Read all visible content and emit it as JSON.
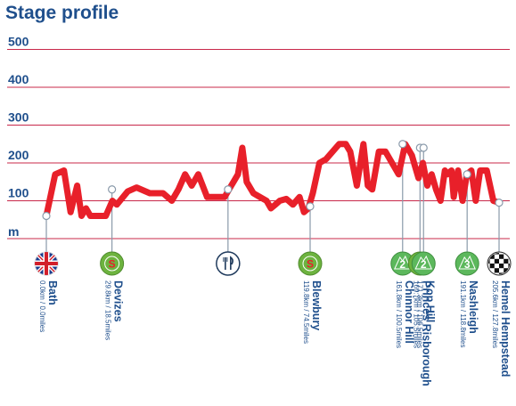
{
  "chart_data": {
    "type": "line",
    "title": "Stage profile",
    "ylabel": "m",
    "ylim": [
      0,
      500
    ],
    "yticks": [
      100,
      200,
      300,
      400,
      500
    ],
    "xlim": [
      0,
      205.6
    ],
    "grid": true,
    "series": [
      {
        "x": [
          0,
          4,
          8,
          11,
          14,
          16,
          18,
          20,
          23,
          27,
          30,
          32,
          37,
          41,
          47,
          53,
          57,
          60,
          63,
          66,
          69,
          73,
          77,
          81,
          84,
          85,
          87,
          89,
          91,
          94,
          97,
          100,
          102,
          104,
          106,
          109,
          112,
          115,
          117,
          119,
          121,
          124,
          127,
          130,
          133,
          136,
          138,
          141,
          144,
          146,
          148,
          151,
          154,
          157,
          160,
          163,
          166,
          167,
          169,
          171,
          173,
          175,
          177,
          179,
          181,
          182,
          184,
          185,
          187,
          189,
          191,
          193,
          195,
          197,
          200,
          203,
          205.6
        ],
        "values": [
          60,
          170,
          180,
          70,
          140,
          60,
          80,
          60,
          60,
          60,
          100,
          90,
          125,
          135,
          120,
          120,
          100,
          130,
          170,
          140,
          170,
          110,
          110,
          110,
          140,
          150,
          170,
          240,
          150,
          120,
          110,
          100,
          80,
          90,
          100,
          105,
          90,
          110,
          70,
          80,
          120,
          200,
          210,
          230,
          250,
          250,
          230,
          140,
          250,
          140,
          130,
          230,
          230,
          200,
          170,
          250,
          220,
          200,
          160,
          200,
          140,
          170,
          130,
          100,
          180,
          170,
          180,
          110,
          180,
          100,
          170,
          180,
          100,
          180,
          180,
          100,
          95
        ]
      }
    ],
    "points": [
      {
        "name": "Bath",
        "distance": "0.0km / 0.0miles",
        "km": 0.0,
        "elev": 60,
        "badge": "flag"
      },
      {
        "name": "Devizes",
        "distance": "29.8km / 18.5miles",
        "km": 29.8,
        "elev": 130,
        "badge": "sprint",
        "badge_text": "S"
      },
      {
        "name": "",
        "distance": "",
        "km": 82.5,
        "elev": 130,
        "badge": "feed"
      },
      {
        "name": "Blewbury",
        "distance": "119.8km / 74.5miles",
        "km": 119.8,
        "elev": 85,
        "badge": "sprint",
        "badge_text": "S"
      },
      {
        "name": "Chinnor Hill",
        "distance": "161.8km / 100.5miles",
        "km": 161.8,
        "elev": 250,
        "badge": "kom",
        "badge_text": "2"
      },
      {
        "name": "Princes Risborough",
        "distance": "169.7km / 105.5miles",
        "km": 169.7,
        "elev": 240,
        "badge": "sprint",
        "badge_text": "S"
      },
      {
        "name": "Kop Hill",
        "distance": "171.3km / 106.5miles",
        "km": 171.3,
        "elev": 240,
        "badge": "kom",
        "badge_text": "2"
      },
      {
        "name": "Nashleigh",
        "distance": "191.1km / 118.8miles",
        "km": 191.1,
        "elev": 170,
        "badge": "kom",
        "badge_text": "3"
      },
      {
        "name": "Hemel Hempstead",
        "distance": "205.6km / 127.8miles",
        "km": 205.6,
        "elev": 95,
        "badge": "finish"
      }
    ],
    "colors": {
      "line": "#e8202a",
      "grid": "#c8284a",
      "text": "#1f4f8c",
      "sprint": "#6db33f",
      "kom": "#5cb85c",
      "pointer": "#8a9aaa"
    }
  }
}
